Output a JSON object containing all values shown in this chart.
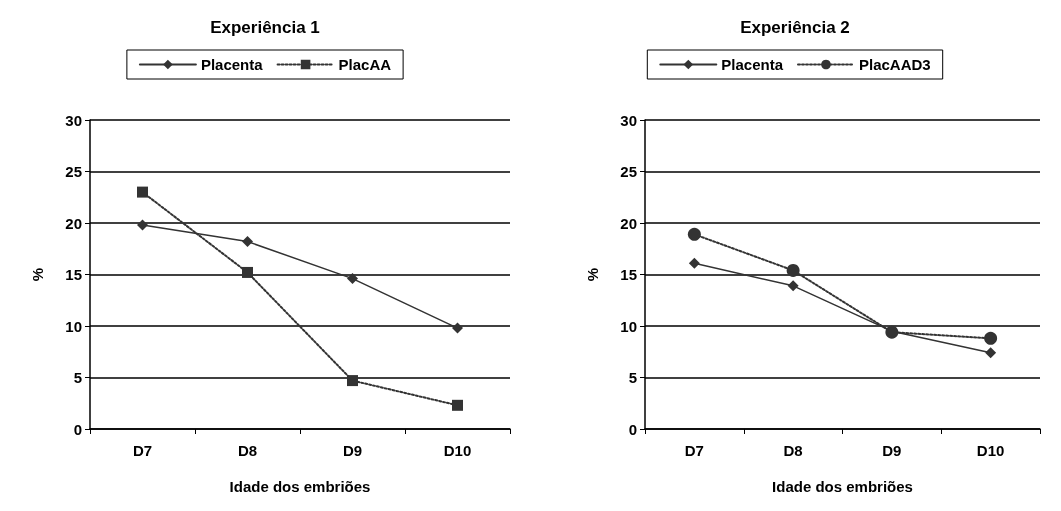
{
  "chart_data": [
    {
      "type": "line",
      "title": "Experiência 1",
      "xlabel": "Idade dos embriões",
      "ylabel": "%",
      "categories": [
        "D7",
        "D8",
        "D9",
        "D10"
      ],
      "series": [
        {
          "name": "Placenta",
          "color": "#333333",
          "values": [
            19.8,
            18.2,
            14.6,
            9.8
          ],
          "marker": "diamond",
          "line_style": "solid"
        },
        {
          "name": "PlacAA",
          "color": "#333333",
          "values": [
            23,
            15.2,
            4.7,
            2.3
          ],
          "marker": "square",
          "line_style": "dotted"
        }
      ],
      "ylim": [
        0,
        30
      ],
      "yticks": [
        0,
        5,
        10,
        15,
        20,
        25,
        30
      ],
      "grid": "y",
      "legend": "top"
    },
    {
      "type": "line",
      "title": "Experiência 2",
      "xlabel": "Idade dos embriões",
      "ylabel": "%",
      "categories": [
        "D7",
        "D8",
        "D9",
        "D10"
      ],
      "series": [
        {
          "name": "Placenta",
          "color": "#333333",
          "values": [
            16.1,
            13.9,
            9.5,
            7.4
          ],
          "marker": "diamond",
          "line_style": "solid"
        },
        {
          "name": "PlacAAD3",
          "color": "#333333",
          "values": [
            18.9,
            15.4,
            9.4,
            8.8
          ],
          "marker": "circle",
          "line_style": "dotted"
        }
      ],
      "ylim": [
        0,
        30
      ],
      "yticks": [
        0,
        5,
        10,
        15,
        20,
        25,
        30
      ],
      "grid": "y",
      "legend": "top"
    }
  ]
}
